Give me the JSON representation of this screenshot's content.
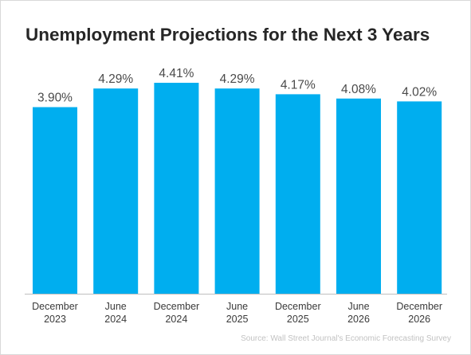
{
  "chart_data": {
    "type": "bar",
    "title": "Unemployment Projections for the Next 3 Years",
    "categories": [
      [
        "December",
        "2023"
      ],
      [
        "June",
        "2024"
      ],
      [
        "December",
        "2024"
      ],
      [
        "June",
        "2025"
      ],
      [
        "December",
        "2025"
      ],
      [
        "June",
        "2026"
      ],
      [
        "December",
        "2026"
      ]
    ],
    "values": [
      3.9,
      4.29,
      4.41,
      4.29,
      4.17,
      4.08,
      4.02
    ],
    "data_labels": [
      "3.90%",
      "4.29%",
      "4.41%",
      "4.29%",
      "4.17%",
      "4.08%",
      "4.02%"
    ],
    "ylim": [
      0,
      4.41
    ],
    "grid": false,
    "legend": "none",
    "bar_color": "#00aeef",
    "source": "Source: Wall Street Journal's Economic Forecasting Survey"
  }
}
